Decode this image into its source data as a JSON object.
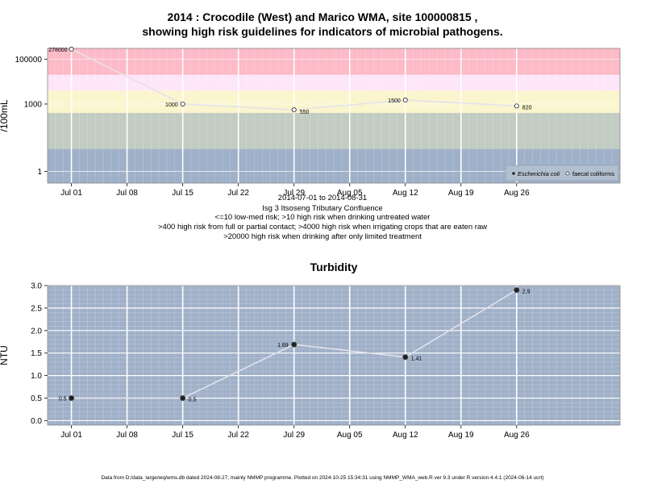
{
  "chart_data": [
    {
      "type": "line",
      "title": "2014 : Crocodile (West) and Marico WMA, site 100000815 ,",
      "subtitle": "showing high risk guidelines for indicators of microbial pathogens.",
      "ylabel": "/100mL",
      "xlabel": "",
      "y_scale": "log",
      "ylim": [
        0.3,
        300000
      ],
      "yticks": [
        1,
        1000,
        100000
      ],
      "ytick_labels": [
        "1",
        "1000",
        "100000"
      ],
      "xlim": [
        "2014-06-28",
        "2014-09-08"
      ],
      "xticks": [
        "2014-07-01",
        "2014-07-08",
        "2014-07-15",
        "2014-07-22",
        "2014-07-29",
        "2014-08-05",
        "2014-08-12",
        "2014-08-19",
        "2014-08-26"
      ],
      "xtick_labels": [
        "Jul 01",
        "Jul 08",
        "Jul 15",
        "Jul 22",
        "Jul 29",
        "Aug 05",
        "Aug 12",
        "Aug 19",
        "Aug 26"
      ],
      "grid": true,
      "risk_bands": [
        {
          "from": 0.3,
          "to": 10,
          "color": "#9fb0c9"
        },
        {
          "from": 10,
          "to": 400,
          "color": "#c2ccc2"
        },
        {
          "from": 400,
          "to": 4000,
          "color": "#fbf5cd"
        },
        {
          "from": 4000,
          "to": 20000,
          "color": "#fde6f9"
        },
        {
          "from": 20000,
          "to": 300000,
          "color": "#fdbac7"
        }
      ],
      "series": [
        {
          "name": "faecal coliforms",
          "marker": "open-circle",
          "x": [
            "2014-07-01",
            "2014-07-15",
            "2014-07-29",
            "2014-08-12",
            "2014-08-26"
          ],
          "values": [
            278000,
            1000,
            550,
            1500,
            820
          ],
          "labels": [
            "278000",
            "1000",
            "550",
            "1500",
            "820"
          ]
        }
      ],
      "legend": {
        "position": "bottom-right",
        "items": [
          "Escherichia coli",
          "faecal coliforms"
        ]
      }
    },
    {
      "type": "line",
      "title": "Turbidity",
      "ylabel": "NTU",
      "xlabel": "",
      "ylim": [
        -0.1,
        3.0
      ],
      "yticks": [
        0.0,
        0.5,
        1.0,
        1.5,
        2.0,
        2.5,
        3.0
      ],
      "ytick_labels": [
        "0.0",
        "0.5",
        "1.0",
        "1.5",
        "2.0",
        "2.5",
        "3.0"
      ],
      "xlim": [
        "2014-06-28",
        "2014-09-08"
      ],
      "xticks": [
        "2014-07-01",
        "2014-07-08",
        "2014-07-15",
        "2014-07-22",
        "2014-07-29",
        "2014-08-05",
        "2014-08-12",
        "2014-08-19",
        "2014-08-26"
      ],
      "xtick_labels": [
        "Jul 01",
        "Jul 08",
        "Jul 15",
        "Jul 22",
        "Jul 29",
        "Aug 05",
        "Aug 12",
        "Aug 19",
        "Aug 26"
      ],
      "grid": true,
      "background": "#a0b0c8",
      "series": [
        {
          "name": "",
          "marker": "filled-circle",
          "x": [
            "2014-07-01",
            "2014-07-15",
            "2014-07-29",
            "2014-08-12",
            "2014-08-26"
          ],
          "values": [
            0.5,
            0.5,
            1.69,
            1.41,
            2.9
          ],
          "labels": [
            "0.5",
            "0.5",
            "1.69",
            "1.41",
            "2.9"
          ]
        }
      ]
    }
  ],
  "captions": {
    "date_range": "2014-07-01 to 2014-08-31",
    "site_name": "Isg 3 Itsoseng Tributary Confluence",
    "line1": "<=10 low-med risk; >10 high risk when drinking untreated water",
    "line2": ">400 high risk from full or partial contact; >4000 high risk when irrigating crops that are eaten raw",
    "line3": ">20000 high risk when drinking after only limited treatment"
  },
  "footer": "Data from D:/data_large/wq/wms.db dated 2024-08-27, mainly NMMP programme. Plotted on 2024-10-25 15:34:31 using NMMP_WMA_web.R ver 9.3 under R version 4.4.1 (2024-06-14 ucrt)"
}
